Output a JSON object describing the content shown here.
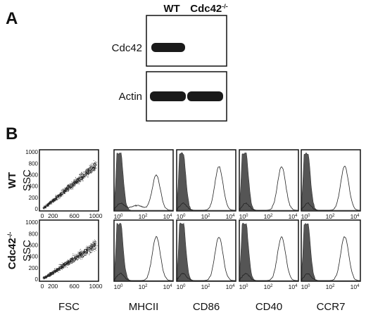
{
  "panel_a": {
    "label": "A",
    "columns": [
      {
        "name": "WT"
      },
      {
        "name": "Cdc42",
        "sup": "-/-"
      }
    ],
    "rows": [
      "Cdc42",
      "Actin"
    ]
  },
  "panel_b": {
    "label": "B",
    "rows": [
      {
        "name": "WT",
        "axis": "SSC"
      },
      {
        "name": "Cdc42",
        "sup": "-/-",
        "axis": "SSC"
      }
    ],
    "scatter_xticks": [
      0,
      200,
      600,
      1000
    ],
    "scatter_yticks": [
      0,
      200,
      400,
      600,
      800,
      1000
    ],
    "hist_xticks": [
      {
        "base": 10,
        "exp": 0
      },
      {
        "base": 10,
        "exp": 2
      },
      {
        "base": 10,
        "exp": 4
      }
    ],
    "columns": [
      "FSC",
      "MHCII",
      "CD86",
      "CD40",
      "CCR7"
    ]
  }
}
